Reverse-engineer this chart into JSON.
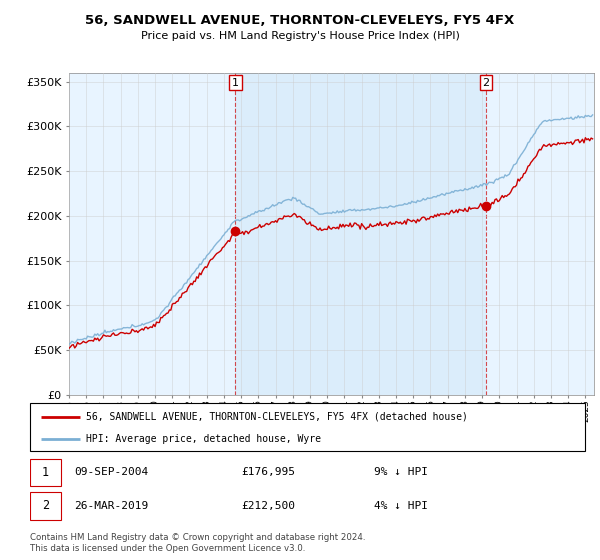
{
  "title": "56, SANDWELL AVENUE, THORNTON-CLEVELEYS, FY5 4FX",
  "subtitle": "Price paid vs. HM Land Registry's House Price Index (HPI)",
  "legend_line1": "56, SANDWELL AVENUE, THORNTON-CLEVELEYS, FY5 4FX (detached house)",
  "legend_line2": "HPI: Average price, detached house, Wyre",
  "annotation1": {
    "label": "1",
    "date": "09-SEP-2004",
    "price": "£176,995",
    "hpi": "9% ↓ HPI",
    "x_year": 2004.67
  },
  "annotation2": {
    "label": "2",
    "date": "26-MAR-2019",
    "price": "£212,500",
    "hpi": "4% ↓ HPI",
    "x_year": 2019.23
  },
  "footnote": "Contains HM Land Registry data © Crown copyright and database right 2024.\nThis data is licensed under the Open Government Licence v3.0.",
  "red_color": "#cc0000",
  "blue_color": "#7bafd4",
  "fill_color": "#ddeeff",
  "ylim": [
    0,
    360000
  ],
  "xlim_start": 1995.0,
  "xlim_end": 2025.5,
  "background_color": "#ffffff",
  "grid_color": "#cccccc",
  "sale1_price": 176995,
  "sale2_price": 212500,
  "sale1_year": 2004.67,
  "sale2_year": 2019.23
}
